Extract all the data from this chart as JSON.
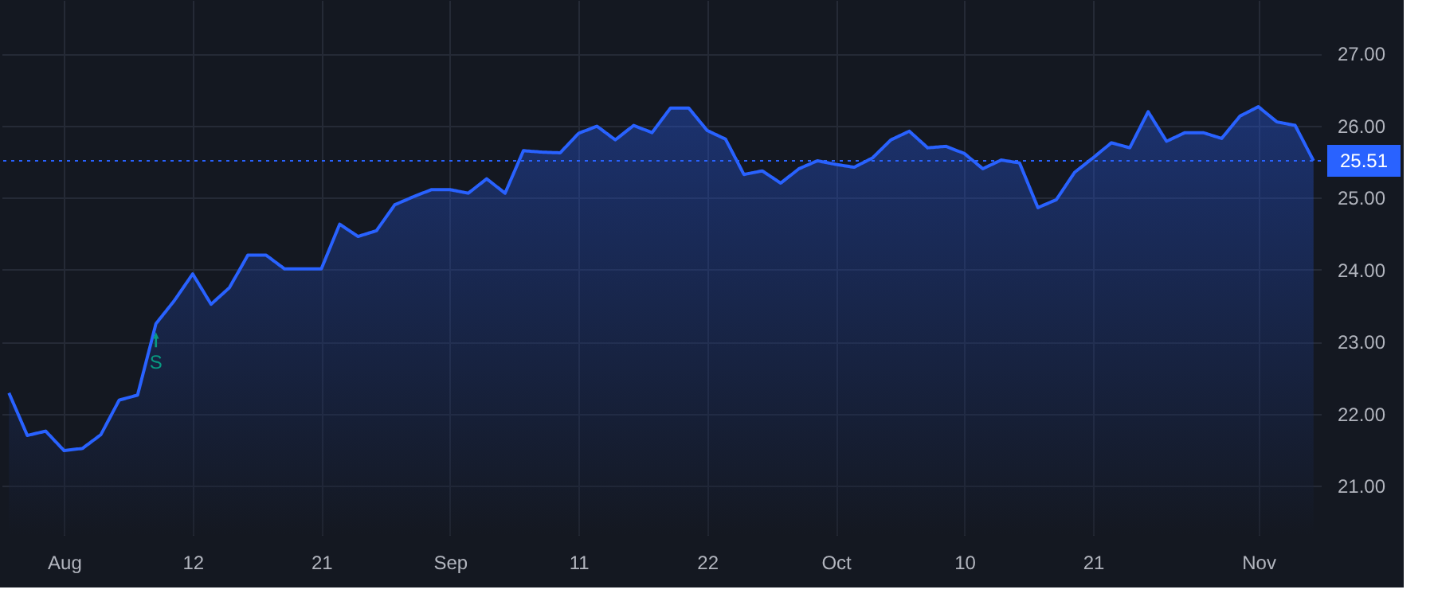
{
  "chart_data": {
    "type": "area",
    "categories": [
      null,
      null,
      null,
      "Aug",
      null,
      null,
      null,
      null,
      null,
      null,
      "12",
      null,
      null,
      null,
      null,
      null,
      null,
      "21",
      null,
      null,
      null,
      null,
      null,
      null,
      "Sep",
      null,
      null,
      null,
      null,
      null,
      null,
      "11",
      null,
      null,
      null,
      null,
      null,
      null,
      "22",
      null,
      null,
      null,
      null,
      null,
      null,
      "Oct",
      null,
      null,
      null,
      null,
      null,
      null,
      "10",
      null,
      null,
      null,
      null,
      null,
      null,
      "21",
      null,
      null,
      null,
      null,
      null,
      null,
      null,
      null,
      "Nov",
      null,
      null,
      null
    ],
    "series": [
      {
        "color": "#2962ff",
        "values": [
          22.29,
          21.7,
          21.76,
          21.49,
          21.52,
          21.71,
          22.19,
          22.26,
          23.25,
          23.57,
          23.94,
          23.52,
          23.75,
          24.2,
          24.2,
          24.01,
          24.01,
          24.01,
          24.63,
          24.46,
          24.54,
          24.9,
          25.01,
          25.11,
          25.11,
          25.06,
          25.26,
          25.06,
          25.65,
          25.63,
          25.62,
          25.89,
          25.99,
          25.8,
          26.0,
          25.9,
          26.24,
          26.24,
          25.93,
          25.81,
          25.32,
          25.37,
          25.2,
          25.4,
          25.51,
          25.46,
          25.42,
          25.55,
          25.8,
          25.92,
          25.69,
          25.71,
          25.61,
          25.4,
          25.52,
          25.48,
          24.86,
          24.97,
          25.35,
          25.55,
          25.76,
          25.69,
          26.19,
          25.78,
          25.9,
          25.9,
          25.82,
          26.13,
          26.26,
          26.05,
          26.0,
          25.51
        ]
      }
    ],
    "ylim": [
      20.32,
      27.74
    ],
    "yticks": [
      {
        "value": 21,
        "label": "21.00"
      },
      {
        "value": 22,
        "label": "22.00"
      },
      {
        "value": 23,
        "label": "23.00"
      },
      {
        "value": 24,
        "label": "24.00"
      },
      {
        "value": 25,
        "label": "25.00"
      },
      {
        "value": 26,
        "label": "26.00"
      },
      {
        "value": 27,
        "label": "27.00"
      }
    ],
    "ref_lines": [
      {
        "axis": "y",
        "value": 25.51,
        "label": "25.51",
        "color": "#2962ff",
        "line_style": "dotted"
      }
    ],
    "annotations": [
      {
        "text": "S",
        "y": 23.25
      }
    ],
    "grid": true
  }
}
